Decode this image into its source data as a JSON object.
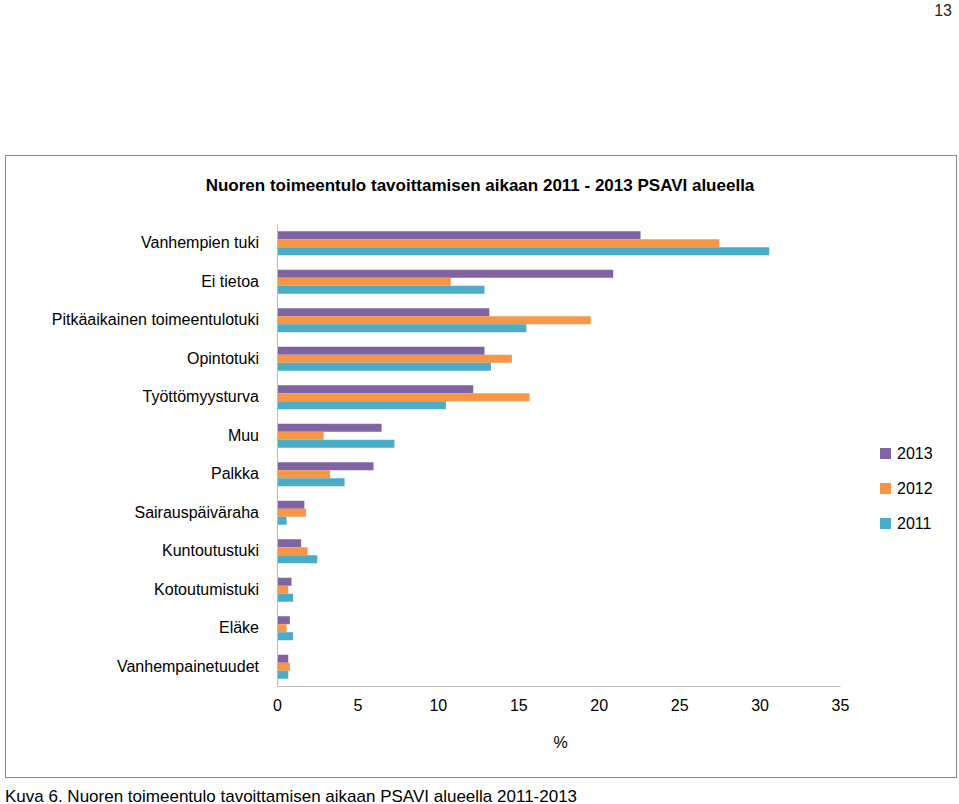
{
  "page": {
    "number": "13",
    "caption": "Kuva 6. Nuoren toimeentulo tavoittamisen aikaan PSAVI alueella 2011-2013"
  },
  "chart_data": {
    "type": "bar",
    "orientation": "horizontal",
    "title": "Nuoren toimeentulo tavoittamisen aikaan 2011 - 2013 PSAVI alueella",
    "xlabel": "%",
    "categories": [
      "Vanhempien tuki",
      "Ei tietoa",
      "Pitkäaikainen toimeentulotuki",
      "Opintotuki",
      "Työttömyysturva",
      "Muu",
      "Palkka",
      "Sairauspäiväraha",
      "Kuntoutustuki",
      "Kotoutumistuki",
      "Eläke",
      "Vanhempainetuudet"
    ],
    "series": [
      {
        "name": "2013",
        "color": "#8064a2",
        "values": [
          22.6,
          20.9,
          13.2,
          12.9,
          12.2,
          6.5,
          6.0,
          1.7,
          1.5,
          0.9,
          0.8,
          0.7
        ]
      },
      {
        "name": "2012",
        "color": "#f79646",
        "values": [
          27.5,
          10.8,
          19.5,
          14.6,
          15.7,
          2.9,
          3.3,
          1.8,
          1.9,
          0.7,
          0.6,
          0.8
        ]
      },
      {
        "name": "2011",
        "color": "#4bacc6",
        "values": [
          30.6,
          12.9,
          15.5,
          13.3,
          10.5,
          7.3,
          4.2,
          0.6,
          2.5,
          1.0,
          1.0,
          0.7
        ]
      }
    ],
    "xlim": [
      0,
      35
    ],
    "xticks": [
      0,
      5,
      10,
      15,
      20,
      25,
      30,
      35
    ],
    "grid": false,
    "legend": "right"
  }
}
